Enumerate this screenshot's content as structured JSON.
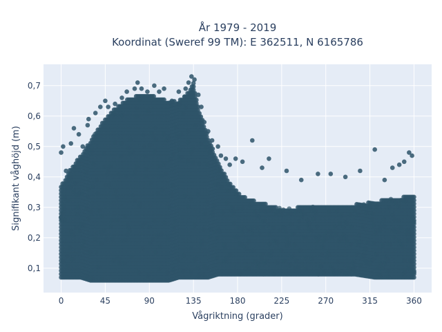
{
  "chart_data": {
    "type": "scatter",
    "title_line1": "År 1979 - 2019",
    "title_line2": "Koordinat (Sweref 99 TM): E 362511, N 6165786",
    "xlabel": "Vågriktning (grader)",
    "ylabel": "Signifikant våghöjd (m)",
    "xlim": [
      -18,
      378
    ],
    "ylim": [
      0.02,
      0.77
    ],
    "xticks": [
      0,
      45,
      90,
      135,
      180,
      225,
      270,
      315,
      360
    ],
    "yticks": [
      0.1,
      0.2,
      0.3,
      0.4,
      0.5,
      0.6,
      0.7
    ],
    "ytick_labels": [
      "0,1",
      "0,2",
      "0,3",
      "0,4",
      "0,5",
      "0,6",
      "0,7"
    ],
    "grid": true,
    "colors": {
      "marker": "#2e5468",
      "plot_bg": "#e5ecf6",
      "grid": "#ffffff",
      "text": "#2a3f5f"
    },
    "envelope": {
      "x": [
        0,
        10,
        20,
        30,
        40,
        50,
        60,
        70,
        80,
        90,
        100,
        110,
        120,
        130,
        135,
        140,
        150,
        160,
        170,
        180,
        190,
        200,
        220,
        240,
        260,
        280,
        300,
        320,
        340,
        360
      ],
      "upper": [
        0.37,
        0.43,
        0.47,
        0.52,
        0.57,
        0.61,
        0.64,
        0.66,
        0.67,
        0.67,
        0.66,
        0.65,
        0.65,
        0.68,
        0.71,
        0.63,
        0.53,
        0.45,
        0.39,
        0.35,
        0.33,
        0.32,
        0.3,
        0.3,
        0.31,
        0.31,
        0.31,
        0.32,
        0.33,
        0.34
      ],
      "lower": [
        0.07,
        0.07,
        0.07,
        0.06,
        0.06,
        0.06,
        0.06,
        0.06,
        0.06,
        0.06,
        0.06,
        0.06,
        0.07,
        0.07,
        0.07,
        0.07,
        0.07,
        0.08,
        0.08,
        0.08,
        0.08,
        0.08,
        0.08,
        0.08,
        0.08,
        0.08,
        0.08,
        0.07,
        0.07,
        0.07
      ]
    },
    "outliers": [
      {
        "x": 0,
        "y": 0.48
      },
      {
        "x": 2,
        "y": 0.5
      },
      {
        "x": 5,
        "y": 0.42
      },
      {
        "x": 10,
        "y": 0.51
      },
      {
        "x": 13,
        "y": 0.56
      },
      {
        "x": 18,
        "y": 0.54
      },
      {
        "x": 22,
        "y": 0.5
      },
      {
        "x": 27,
        "y": 0.57
      },
      {
        "x": 28,
        "y": 0.59
      },
      {
        "x": 35,
        "y": 0.61
      },
      {
        "x": 40,
        "y": 0.63
      },
      {
        "x": 45,
        "y": 0.65
      },
      {
        "x": 48,
        "y": 0.63
      },
      {
        "x": 55,
        "y": 0.64
      },
      {
        "x": 62,
        "y": 0.66
      },
      {
        "x": 67,
        "y": 0.68
      },
      {
        "x": 75,
        "y": 0.69
      },
      {
        "x": 78,
        "y": 0.71
      },
      {
        "x": 82,
        "y": 0.69
      },
      {
        "x": 88,
        "y": 0.68
      },
      {
        "x": 95,
        "y": 0.7
      },
      {
        "x": 100,
        "y": 0.68
      },
      {
        "x": 105,
        "y": 0.69
      },
      {
        "x": 113,
        "y": 0.65
      },
      {
        "x": 120,
        "y": 0.68
      },
      {
        "x": 127,
        "y": 0.69
      },
      {
        "x": 130,
        "y": 0.71
      },
      {
        "x": 133,
        "y": 0.73
      },
      {
        "x": 136,
        "y": 0.72
      },
      {
        "x": 140,
        "y": 0.67
      },
      {
        "x": 143,
        "y": 0.63
      },
      {
        "x": 146,
        "y": 0.58
      },
      {
        "x": 150,
        "y": 0.55
      },
      {
        "x": 154,
        "y": 0.52
      },
      {
        "x": 160,
        "y": 0.5
      },
      {
        "x": 163,
        "y": 0.47
      },
      {
        "x": 168,
        "y": 0.46
      },
      {
        "x": 172,
        "y": 0.44
      },
      {
        "x": 178,
        "y": 0.46
      },
      {
        "x": 185,
        "y": 0.45
      },
      {
        "x": 195,
        "y": 0.52
      },
      {
        "x": 205,
        "y": 0.43
      },
      {
        "x": 212,
        "y": 0.46
      },
      {
        "x": 230,
        "y": 0.42
      },
      {
        "x": 245,
        "y": 0.39
      },
      {
        "x": 262,
        "y": 0.41
      },
      {
        "x": 275,
        "y": 0.41
      },
      {
        "x": 290,
        "y": 0.4
      },
      {
        "x": 305,
        "y": 0.42
      },
      {
        "x": 320,
        "y": 0.49
      },
      {
        "x": 330,
        "y": 0.39
      },
      {
        "x": 338,
        "y": 0.43
      },
      {
        "x": 345,
        "y": 0.44
      },
      {
        "x": 350,
        "y": 0.45
      },
      {
        "x": 355,
        "y": 0.48
      },
      {
        "x": 358,
        "y": 0.47
      }
    ]
  }
}
